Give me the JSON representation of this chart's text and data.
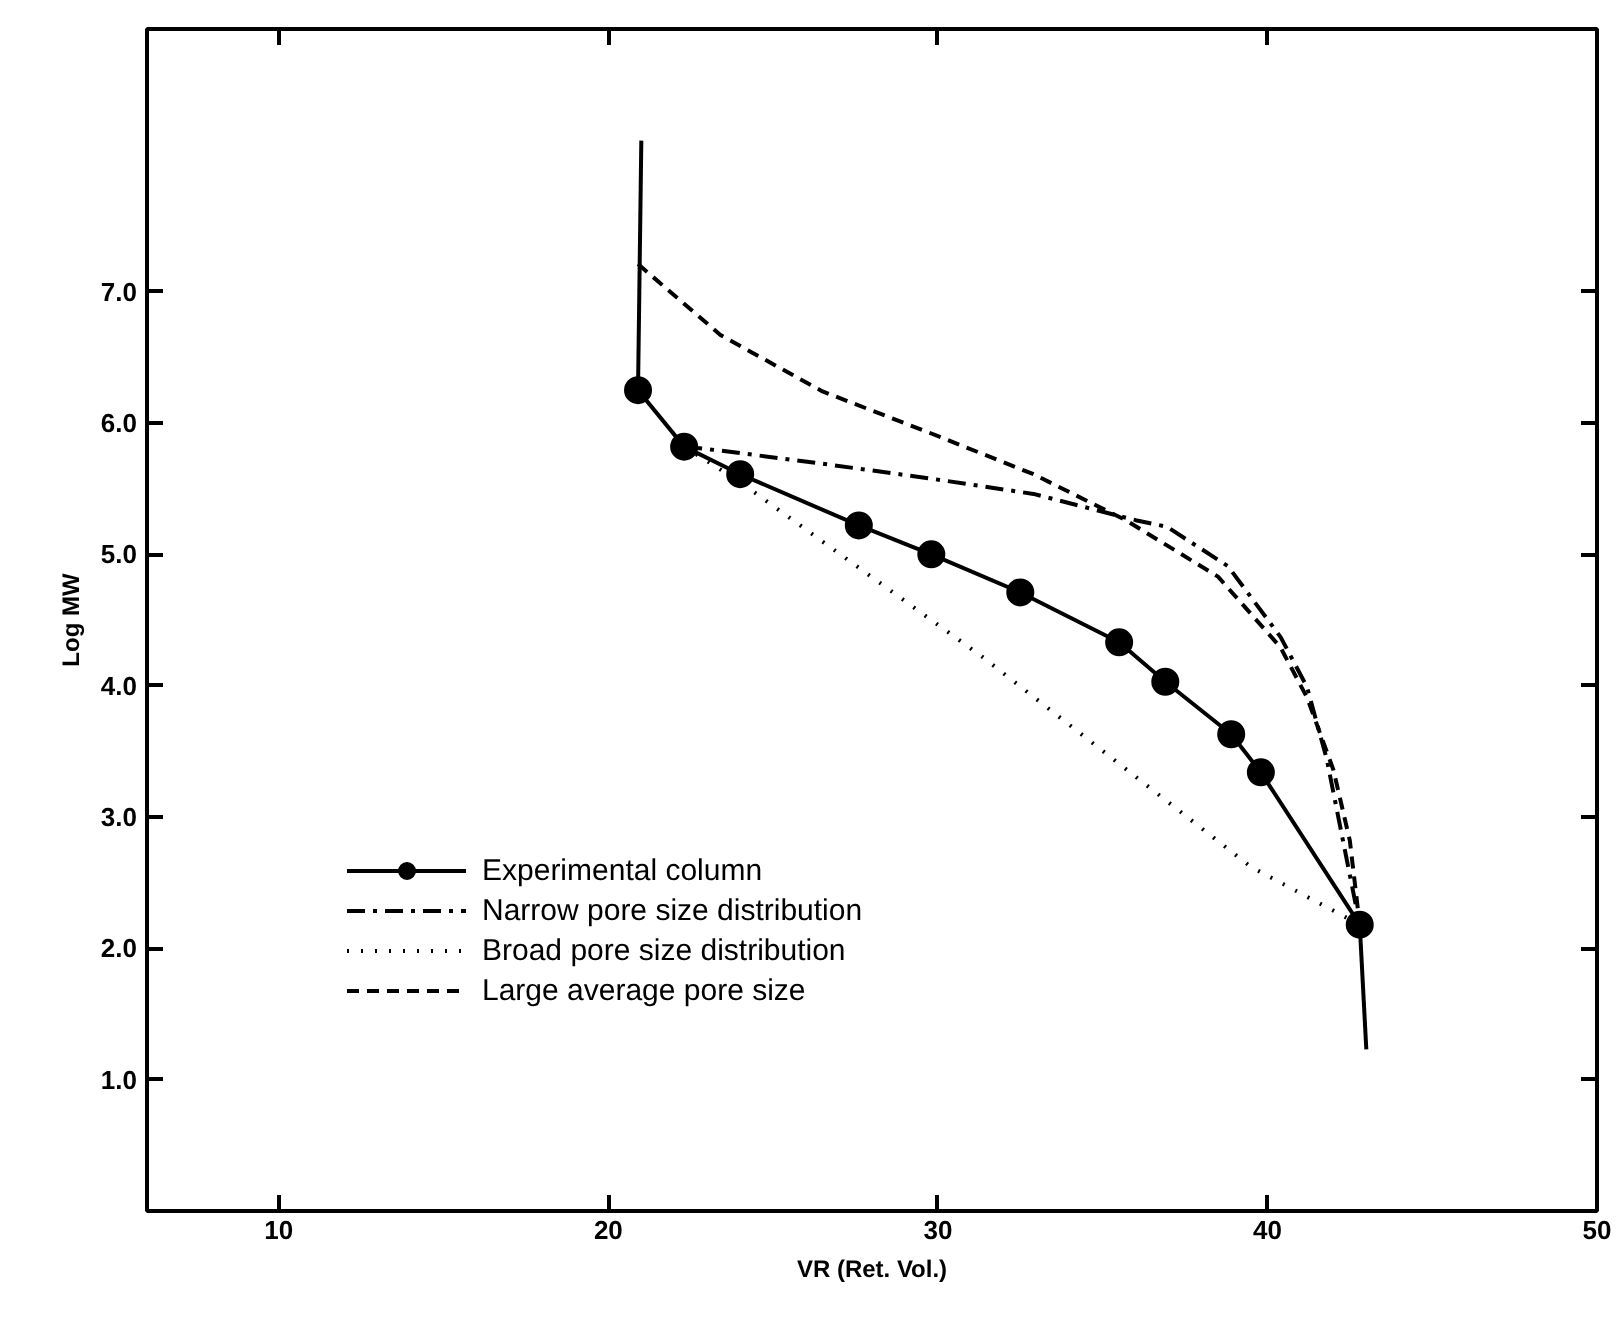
{
  "chart_data": {
    "type": "line",
    "xlabel": "VR (Ret. Vol.)",
    "ylabel": "Log MW",
    "xlim": [
      6,
      50
    ],
    "ylim": [
      0,
      9
    ],
    "xticks": [
      10,
      20,
      30,
      40,
      50
    ],
    "yticks": [
      {
        "value": 1,
        "label": "1.0"
      },
      {
        "value": 2,
        "label": "2.0"
      },
      {
        "value": 3,
        "label": "3.0"
      },
      {
        "value": 4,
        "label": "4.0"
      },
      {
        "value": 5,
        "label": "5.0"
      },
      {
        "value": 6,
        "label": "6.0"
      },
      {
        "value": 7,
        "label": "7.0"
      }
    ],
    "grid": false,
    "legend": "bottom left",
    "series": [
      {
        "name": "Experimental column",
        "color": "#000000",
        "marker": "circle",
        "line_style": "solid",
        "x": [
          20.9,
          22.3,
          24.0,
          27.6,
          29.8,
          32.5,
          35.5,
          36.9,
          38.9,
          39.8,
          42.8
        ],
        "values": [
          6.25,
          5.82,
          5.61,
          5.22,
          5.0,
          4.71,
          4.33,
          4.03,
          3.63,
          3.34,
          2.18
        ]
      },
      {
        "name": "Narrow pore size distribution",
        "color": "#000000",
        "marker": "none",
        "line_style": "dashdot",
        "x": [
          22.3,
          23.4,
          26.5,
          29.7,
          32.9,
          36.0,
          36.95,
          38.8,
          40.4,
          41.2,
          41.8,
          42.8
        ],
        "values": [
          5.82,
          5.79,
          5.69,
          5.58,
          5.46,
          5.26,
          5.21,
          4.91,
          4.37,
          3.99,
          3.44,
          2.18
        ]
      },
      {
        "name": "Broad pore size distribution",
        "color": "#000000",
        "marker": "none",
        "line_style": "dotted",
        "x": [
          22.3,
          24.0,
          31.4,
          39.5,
          42.8
        ],
        "values": [
          5.82,
          5.55,
          4.21,
          2.62,
          2.18
        ]
      },
      {
        "name": "Large average pore size",
        "color": "#000000",
        "marker": "none",
        "line_style": "dashed",
        "x": [
          20.9,
          23.4,
          26.5,
          29.7,
          32.9,
          35.7,
          38.5,
          40.4,
          41.2,
          42.0,
          42.5,
          42.8
        ],
        "values": [
          7.21,
          6.67,
          6.24,
          5.93,
          5.61,
          5.26,
          4.83,
          4.29,
          3.91,
          3.36,
          2.82,
          2.18
        ]
      },
      {
        "color": "#000000",
        "marker": "none",
        "line_style": "solid",
        "x": [
          21.0,
          20.9
        ],
        "values": [
          8.15,
          6.25
        ]
      },
      {
        "color": "#000000",
        "marker": "none",
        "line_style": "solid",
        "x": [
          42.8,
          43.0
        ],
        "values": [
          2.18,
          1.23
        ]
      }
    ]
  }
}
